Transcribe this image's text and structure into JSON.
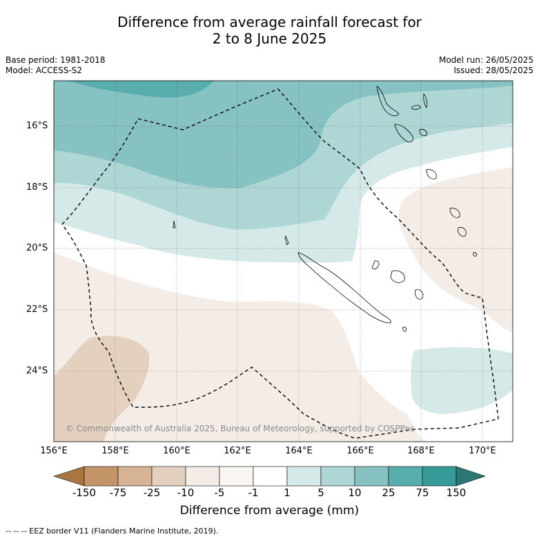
{
  "header": {
    "title_line1": "Difference from average rainfall forecast for",
    "title_line2": "2 to 8 June 2025",
    "base_period": "Base period: 1981-2018",
    "model": "Model: ACCESS-S2",
    "model_run": "Model run: 26/05/2025",
    "issued": "Issued: 28/05/2025"
  },
  "map": {
    "lat_labels": [
      "16°S",
      "18°S",
      "20°S",
      "22°S",
      "24°S"
    ],
    "lon_labels": [
      "156°E",
      "158°E",
      "160°E",
      "162°E",
      "164°E",
      "166°E",
      "168°E",
      "170°E"
    ],
    "copyright": "© Commonwealth of Australia 2025, Bureau of Meteorology, supported by COSPPac",
    "regions": [
      "New Caledonia",
      "Vanuatu",
      "Loyalty Islands"
    ]
  },
  "colorbar": {
    "tick_labels": [
      "-150",
      "-75",
      "-25",
      "-10",
      "-5",
      "-1",
      "1",
      "5",
      "10",
      "25",
      "75",
      "150"
    ],
    "colors": [
      "#a97541",
      "#c29468",
      "#d6b395",
      "#e3d0bf",
      "#f4ede7",
      "#ffffff",
      "#d5e9e8",
      "#add6d5",
      "#86c2c1",
      "#5aadad",
      "#369a98",
      "#2c7776"
    ],
    "title": "Difference from average (mm)"
  },
  "legend_note": "--  --  -- EEZ border V11 (Flanders Marine Institute, 2019)."
}
